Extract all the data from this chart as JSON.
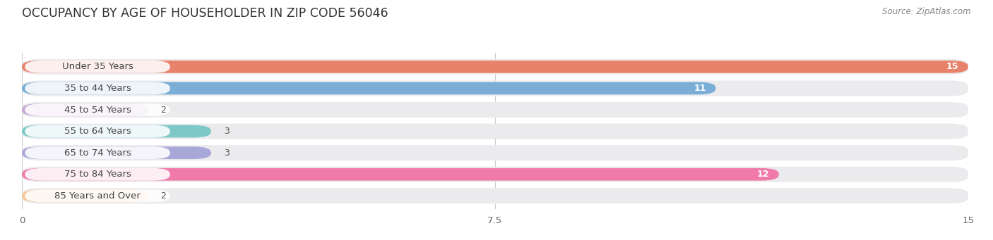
{
  "title": "OCCUPANCY BY AGE OF HOUSEHOLDER IN ZIP CODE 56046",
  "source": "Source: ZipAtlas.com",
  "categories": [
    "Under 35 Years",
    "35 to 44 Years",
    "45 to 54 Years",
    "55 to 64 Years",
    "65 to 74 Years",
    "75 to 84 Years",
    "85 Years and Over"
  ],
  "values": [
    15,
    11,
    2,
    3,
    3,
    12,
    2
  ],
  "bar_colors": [
    "#E8826A",
    "#7AAED6",
    "#C9A8D4",
    "#7EC8C8",
    "#A8A8D8",
    "#F07AAA",
    "#F5C89A"
  ],
  "background_color": "#ffffff",
  "bar_bg_color": "#ebebee",
  "xlim_max": 15,
  "xticks": [
    0,
    7.5,
    15
  ],
  "title_fontsize": 12.5,
  "label_fontsize": 9.5,
  "value_fontsize": 9
}
